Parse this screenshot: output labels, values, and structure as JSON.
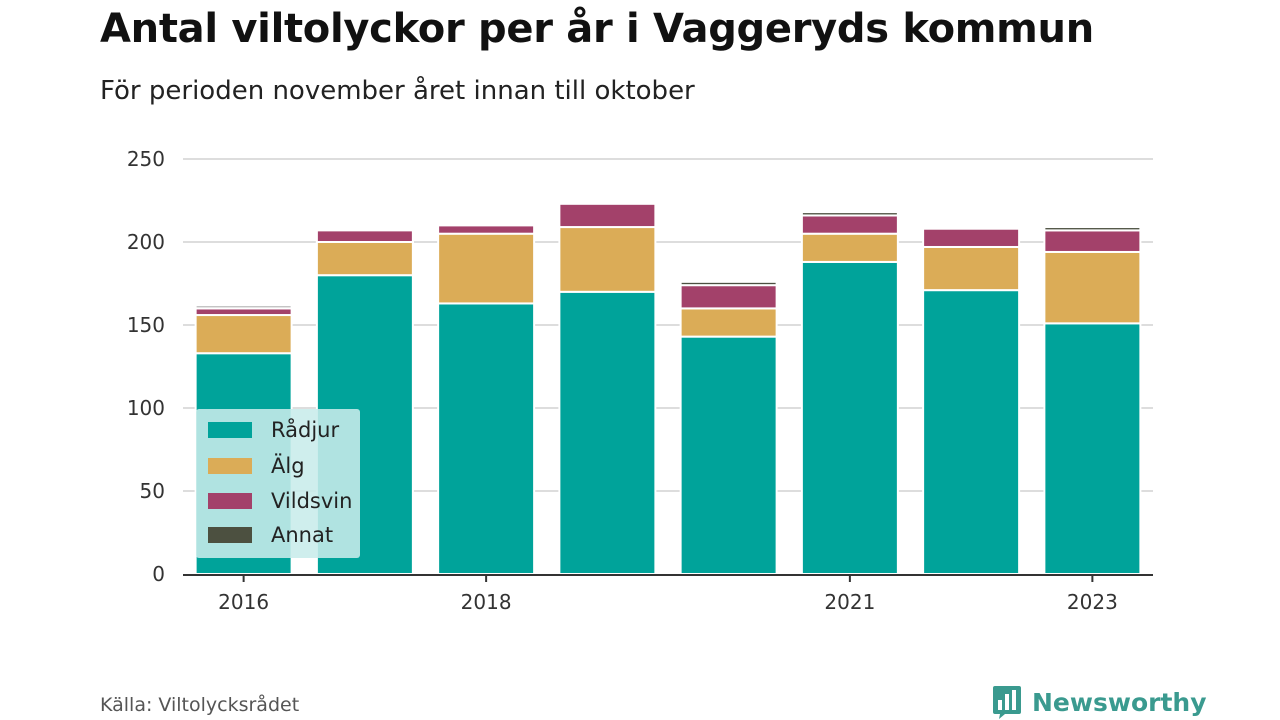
{
  "header": {
    "title": "Antal viltolyckor per år i Vaggeryds kommun",
    "subtitle": "För perioden november året innan till oktober"
  },
  "footer": {
    "source": "Källa: Viltolycksrådet",
    "brand": "Newsworthy",
    "brand_icon": "bar-chart-speech-icon"
  },
  "colors": {
    "Rådjur": "#00a39a",
    "Älg": "#dbac57",
    "Vildsvin": "#a3416a",
    "Annat": "#4c5040",
    "Annat_2016": "#bfbfbf"
  },
  "chart_data": {
    "type": "bar",
    "stacked": true,
    "title": "Antal viltolyckor per år i Vaggeryds kommun",
    "subtitle": "För perioden november året innan till oktober",
    "categories": [
      "2016",
      "2017",
      "2018",
      "2019",
      "2020",
      "2021",
      "2022",
      "2023"
    ],
    "x_tick_labels": [
      "2016",
      "",
      "2018",
      "",
      "",
      "2021",
      "",
      "2023"
    ],
    "series": [
      {
        "name": "Rådjur",
        "values": [
          133,
          180,
          163,
          170,
          143,
          188,
          171,
          151
        ]
      },
      {
        "name": "Älg",
        "values": [
          23,
          20,
          42,
          39,
          17,
          17,
          26,
          43
        ]
      },
      {
        "name": "Vildsvin",
        "values": [
          4,
          7,
          5,
          14,
          14,
          11,
          11,
          13
        ]
      },
      {
        "name": "Annat",
        "values": [
          2,
          0,
          0,
          0,
          2,
          2,
          0,
          2
        ]
      }
    ],
    "ylim": [
      0,
      250
    ],
    "y_ticks": [
      0,
      50,
      100,
      150,
      200,
      250
    ],
    "xlabel": "",
    "ylabel": "",
    "grid": true,
    "legend": [
      "Rådjur",
      "Älg",
      "Vildsvin",
      "Annat"
    ],
    "legend_position": "bottom-left"
  }
}
